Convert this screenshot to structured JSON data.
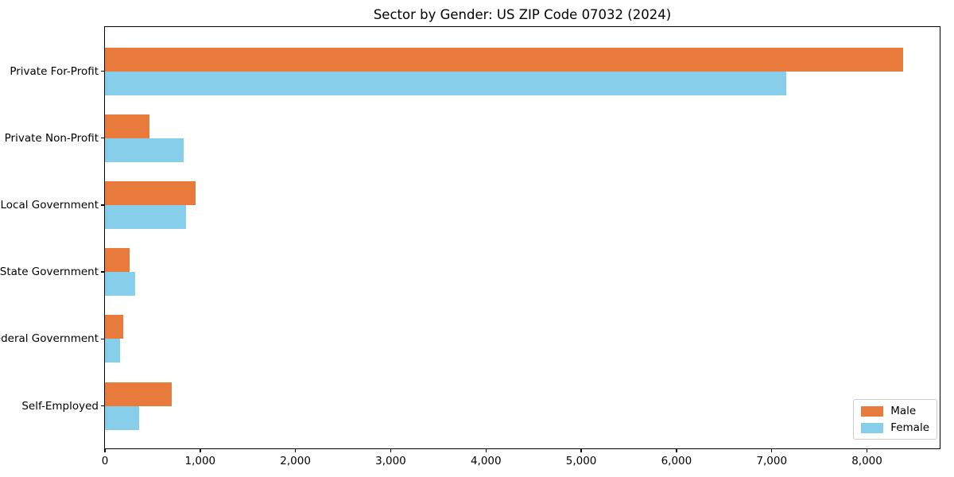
{
  "chart_data": {
    "type": "bar",
    "orientation": "horizontal",
    "title": "Sector by Gender: US ZIP Code 07032 (2024)",
    "categories": [
      "Private For-Profit",
      "Private Non-Profit",
      "Local Government",
      "State Government",
      "Federal Government",
      "Self-Employed"
    ],
    "series": [
      {
        "name": "Male",
        "color": "#E87A3C",
        "values": [
          8380,
          470,
          950,
          260,
          190,
          700
        ]
      },
      {
        "name": "Female",
        "color": "#87CEEB",
        "values": [
          7150,
          825,
          855,
          320,
          160,
          360
        ]
      }
    ],
    "xlim": [
      0,
      8780
    ],
    "xticks": [
      0,
      1000,
      2000,
      3000,
      4000,
      5000,
      6000,
      7000,
      8000
    ],
    "xtick_labels": [
      "0",
      "1,000",
      "2,000",
      "3,000",
      "4,000",
      "5,000",
      "6,000",
      "7,000",
      "8,000"
    ],
    "xlabel": "",
    "ylabel": "",
    "grid": false,
    "legend_position": "lower right"
  }
}
